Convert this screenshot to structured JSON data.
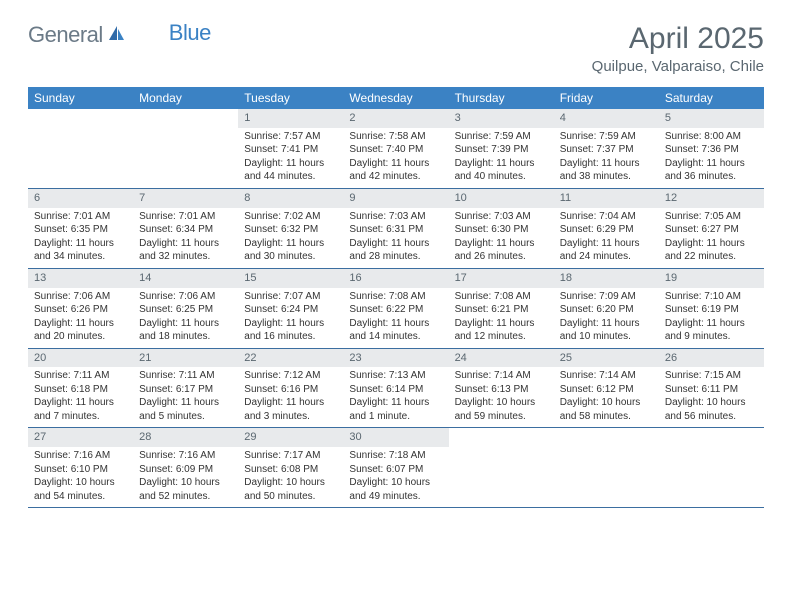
{
  "brand": {
    "text1": "General",
    "text2": "Blue"
  },
  "title": "April 2025",
  "location": "Quilpue, Valparaiso, Chile",
  "colors": {
    "header_bg": "#3b82c4",
    "header_text": "#ffffff",
    "daynum_bg": "#e8eaec",
    "text_gray": "#5a6770",
    "cell_text": "#333333",
    "week_border": "#3b6ea0",
    "page_bg": "#ffffff"
  },
  "day_labels": [
    "Sunday",
    "Monday",
    "Tuesday",
    "Wednesday",
    "Thursday",
    "Friday",
    "Saturday"
  ],
  "weeks": [
    [
      null,
      null,
      {
        "n": "1",
        "sr": "7:57 AM",
        "ss": "7:41 PM",
        "dl": "11 hours and 44 minutes."
      },
      {
        "n": "2",
        "sr": "7:58 AM",
        "ss": "7:40 PM",
        "dl": "11 hours and 42 minutes."
      },
      {
        "n": "3",
        "sr": "7:59 AM",
        "ss": "7:39 PM",
        "dl": "11 hours and 40 minutes."
      },
      {
        "n": "4",
        "sr": "7:59 AM",
        "ss": "7:37 PM",
        "dl": "11 hours and 38 minutes."
      },
      {
        "n": "5",
        "sr": "8:00 AM",
        "ss": "7:36 PM",
        "dl": "11 hours and 36 minutes."
      }
    ],
    [
      {
        "n": "6",
        "sr": "7:01 AM",
        "ss": "6:35 PM",
        "dl": "11 hours and 34 minutes."
      },
      {
        "n": "7",
        "sr": "7:01 AM",
        "ss": "6:34 PM",
        "dl": "11 hours and 32 minutes."
      },
      {
        "n": "8",
        "sr": "7:02 AM",
        "ss": "6:32 PM",
        "dl": "11 hours and 30 minutes."
      },
      {
        "n": "9",
        "sr": "7:03 AM",
        "ss": "6:31 PM",
        "dl": "11 hours and 28 minutes."
      },
      {
        "n": "10",
        "sr": "7:03 AM",
        "ss": "6:30 PM",
        "dl": "11 hours and 26 minutes."
      },
      {
        "n": "11",
        "sr": "7:04 AM",
        "ss": "6:29 PM",
        "dl": "11 hours and 24 minutes."
      },
      {
        "n": "12",
        "sr": "7:05 AM",
        "ss": "6:27 PM",
        "dl": "11 hours and 22 minutes."
      }
    ],
    [
      {
        "n": "13",
        "sr": "7:06 AM",
        "ss": "6:26 PM",
        "dl": "11 hours and 20 minutes."
      },
      {
        "n": "14",
        "sr": "7:06 AM",
        "ss": "6:25 PM",
        "dl": "11 hours and 18 minutes."
      },
      {
        "n": "15",
        "sr": "7:07 AM",
        "ss": "6:24 PM",
        "dl": "11 hours and 16 minutes."
      },
      {
        "n": "16",
        "sr": "7:08 AM",
        "ss": "6:22 PM",
        "dl": "11 hours and 14 minutes."
      },
      {
        "n": "17",
        "sr": "7:08 AM",
        "ss": "6:21 PM",
        "dl": "11 hours and 12 minutes."
      },
      {
        "n": "18",
        "sr": "7:09 AM",
        "ss": "6:20 PM",
        "dl": "11 hours and 10 minutes."
      },
      {
        "n": "19",
        "sr": "7:10 AM",
        "ss": "6:19 PM",
        "dl": "11 hours and 9 minutes."
      }
    ],
    [
      {
        "n": "20",
        "sr": "7:11 AM",
        "ss": "6:18 PM",
        "dl": "11 hours and 7 minutes."
      },
      {
        "n": "21",
        "sr": "7:11 AM",
        "ss": "6:17 PM",
        "dl": "11 hours and 5 minutes."
      },
      {
        "n": "22",
        "sr": "7:12 AM",
        "ss": "6:16 PM",
        "dl": "11 hours and 3 minutes."
      },
      {
        "n": "23",
        "sr": "7:13 AM",
        "ss": "6:14 PM",
        "dl": "11 hours and 1 minute."
      },
      {
        "n": "24",
        "sr": "7:14 AM",
        "ss": "6:13 PM",
        "dl": "10 hours and 59 minutes."
      },
      {
        "n": "25",
        "sr": "7:14 AM",
        "ss": "6:12 PM",
        "dl": "10 hours and 58 minutes."
      },
      {
        "n": "26",
        "sr": "7:15 AM",
        "ss": "6:11 PM",
        "dl": "10 hours and 56 minutes."
      }
    ],
    [
      {
        "n": "27",
        "sr": "7:16 AM",
        "ss": "6:10 PM",
        "dl": "10 hours and 54 minutes."
      },
      {
        "n": "28",
        "sr": "7:16 AM",
        "ss": "6:09 PM",
        "dl": "10 hours and 52 minutes."
      },
      {
        "n": "29",
        "sr": "7:17 AM",
        "ss": "6:08 PM",
        "dl": "10 hours and 50 minutes."
      },
      {
        "n": "30",
        "sr": "7:18 AM",
        "ss": "6:07 PM",
        "dl": "10 hours and 49 minutes."
      },
      null,
      null,
      null
    ]
  ],
  "labels": {
    "sunrise": "Sunrise:",
    "sunset": "Sunset:",
    "daylight": "Daylight:"
  }
}
